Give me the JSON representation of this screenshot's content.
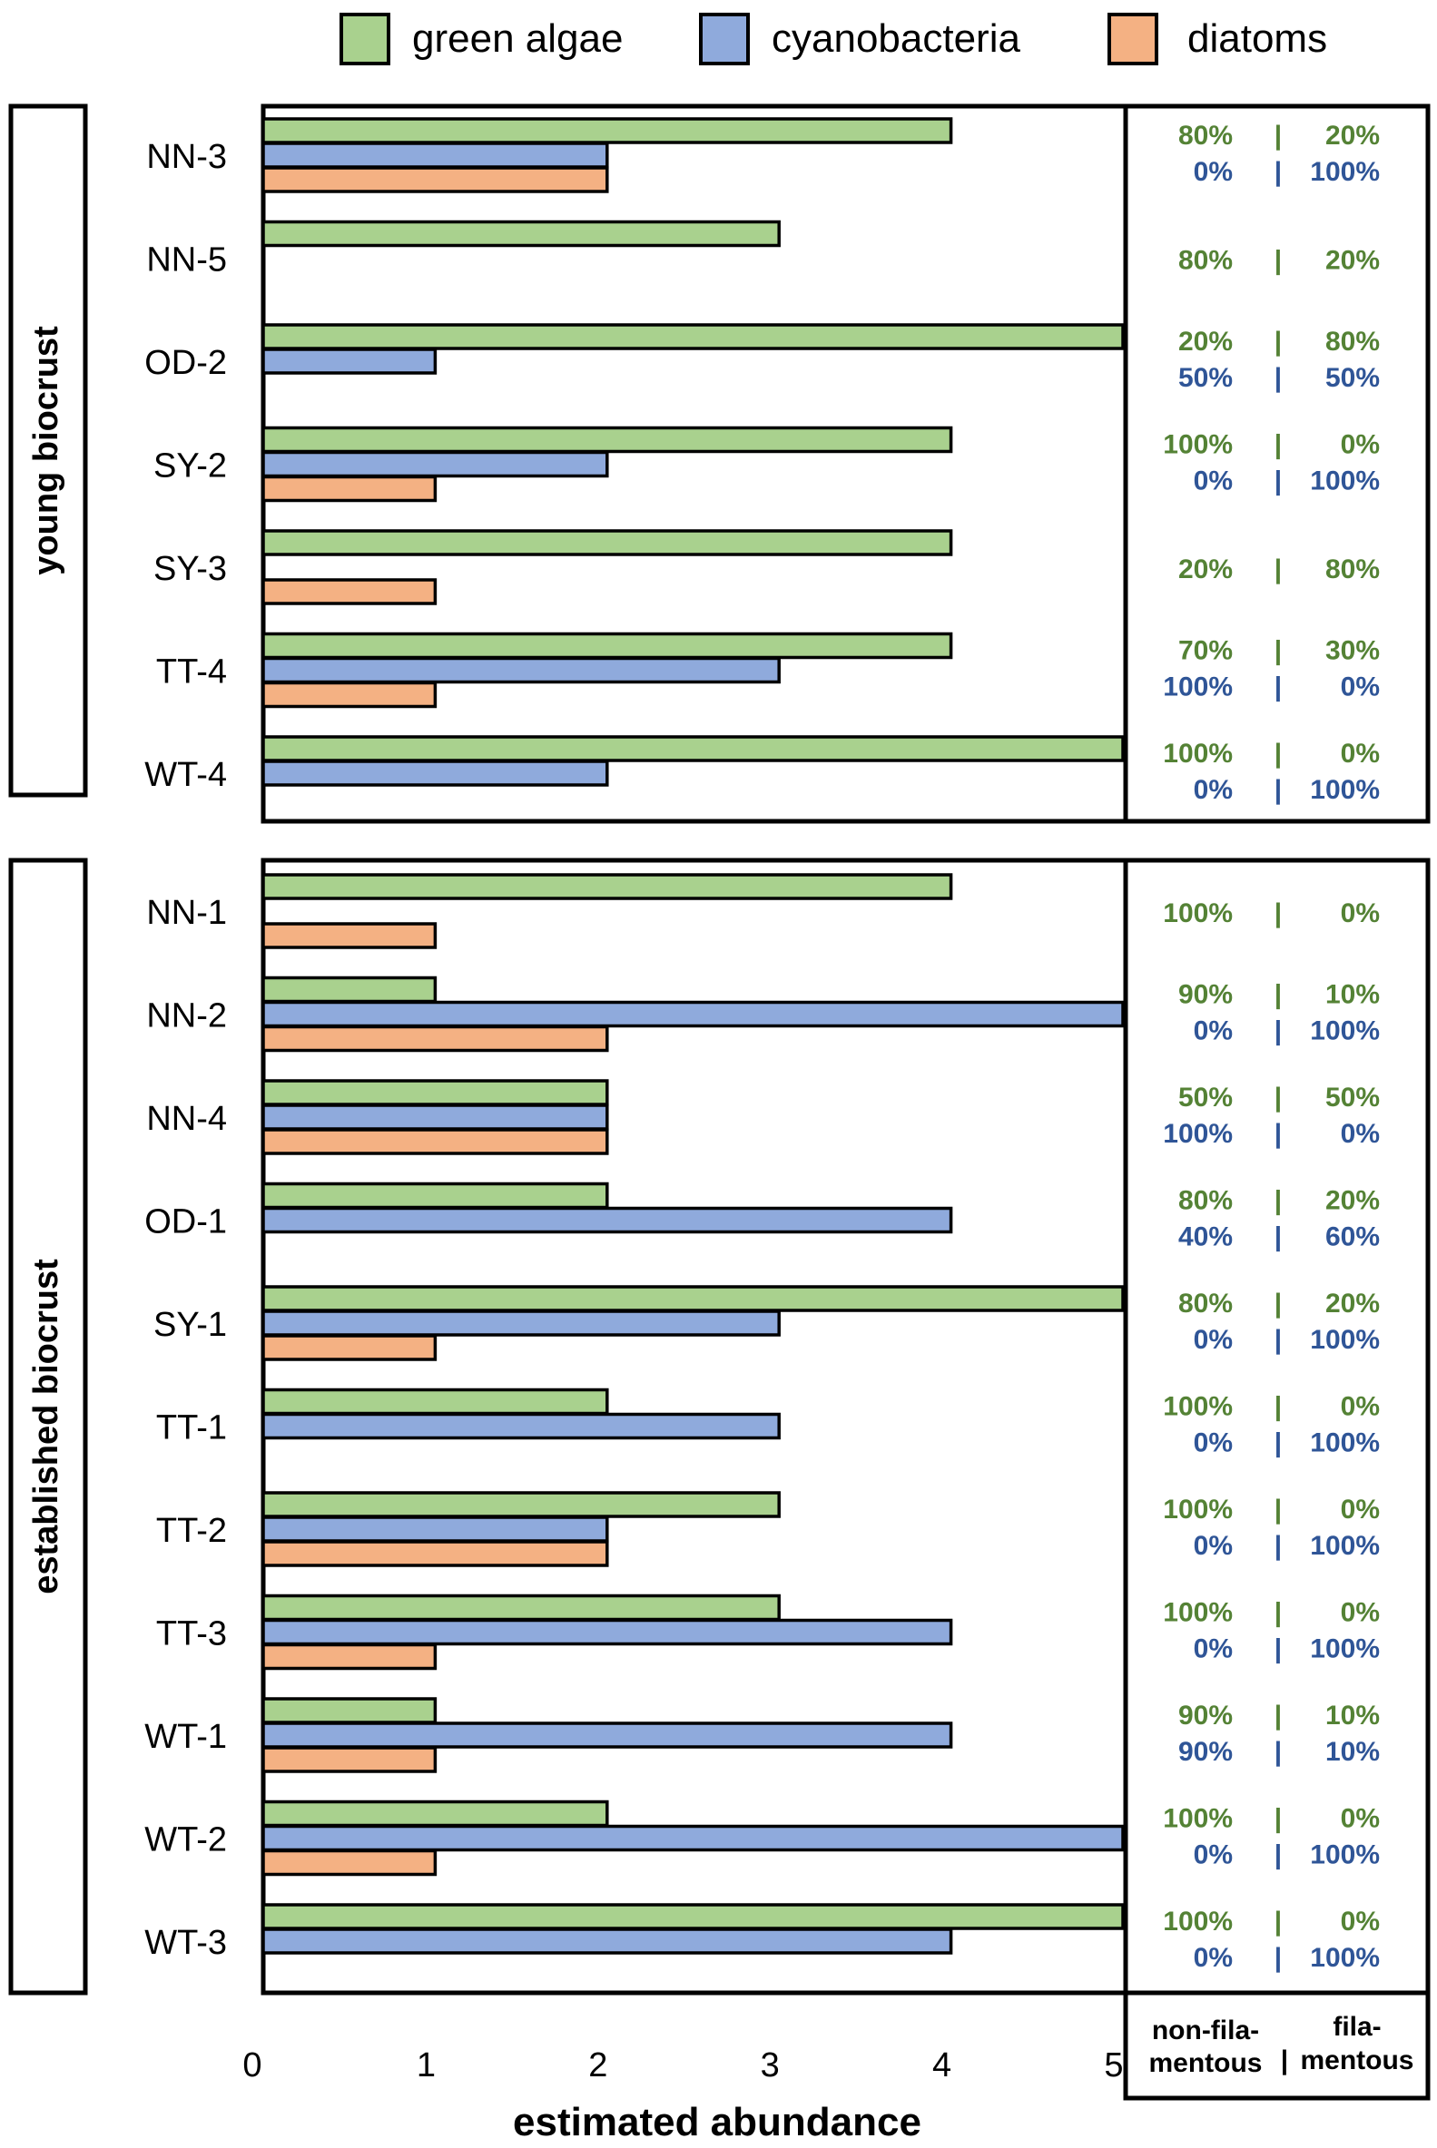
{
  "colors": {
    "green_algae": "#a9d18e",
    "cyanobacteria": "#8faadc",
    "diatoms": "#f4b183",
    "green_text": "#548235",
    "blue_text": "#2f5597"
  },
  "chart_data": {
    "type": "bar",
    "orientation": "horizontal",
    "xlabel": "estimated abundance",
    "xlim": [
      0,
      5
    ],
    "x_ticks": [
      "0",
      "1",
      "2",
      "3",
      "4",
      "5"
    ],
    "legend": [
      {
        "key": "green_algae",
        "label": "green algae"
      },
      {
        "key": "cyanobacteria",
        "label": "cyanobacteria"
      },
      {
        "key": "diatoms",
        "label": "diatoms"
      }
    ],
    "side_footer": {
      "left": [
        "non-fila-",
        "mentous"
      ],
      "divider": "|",
      "right": [
        "fila-",
        "mentous"
      ]
    },
    "groups": [
      {
        "label": "young biocrust",
        "samples": [
          {
            "name": "NN-3",
            "green_algae": 4,
            "cyanobacteria": 2,
            "diatoms": 2,
            "green_split": [
              "80%",
              "20%"
            ],
            "cyano_split": [
              "0%",
              "100%"
            ]
          },
          {
            "name": "NN-5",
            "green_algae": 3,
            "cyanobacteria": 0,
            "diatoms": 0,
            "green_split": [
              "80%",
              "20%"
            ],
            "cyano_split": null
          },
          {
            "name": "OD-2",
            "green_algae": 5,
            "cyanobacteria": 1,
            "diatoms": 0,
            "green_split": [
              "20%",
              "80%"
            ],
            "cyano_split": [
              "50%",
              "50%"
            ]
          },
          {
            "name": "SY-2",
            "green_algae": 4,
            "cyanobacteria": 2,
            "diatoms": 1,
            "green_split": [
              "100%",
              "0%"
            ],
            "cyano_split": [
              "0%",
              "100%"
            ]
          },
          {
            "name": "SY-3",
            "green_algae": 4,
            "cyanobacteria": 0,
            "diatoms": 1,
            "green_split": [
              "20%",
              "80%"
            ],
            "cyano_split": null
          },
          {
            "name": "TT-4",
            "green_algae": 4,
            "cyanobacteria": 3,
            "diatoms": 1,
            "green_split": [
              "70%",
              "30%"
            ],
            "cyano_split": [
              "100%",
              "0%"
            ]
          },
          {
            "name": "WT-4",
            "green_algae": 5,
            "cyanobacteria": 2,
            "diatoms": 0,
            "green_split": [
              "100%",
              "0%"
            ],
            "cyano_split": [
              "0%",
              "100%"
            ]
          }
        ]
      },
      {
        "label": "established biocrust",
        "samples": [
          {
            "name": "NN-1",
            "green_algae": 4,
            "cyanobacteria": 0,
            "diatoms": 1,
            "green_split": [
              "100%",
              "0%"
            ],
            "cyano_split": null
          },
          {
            "name": "NN-2",
            "green_algae": 1,
            "cyanobacteria": 5,
            "diatoms": 2,
            "green_split": [
              "90%",
              "10%"
            ],
            "cyano_split": [
              "0%",
              "100%"
            ]
          },
          {
            "name": "NN-4",
            "green_algae": 2,
            "cyanobacteria": 2,
            "diatoms": 2,
            "green_split": [
              "50%",
              "50%"
            ],
            "cyano_split": [
              "100%",
              "0%"
            ]
          },
          {
            "name": "OD-1",
            "green_algae": 2,
            "cyanobacteria": 4,
            "diatoms": 0,
            "green_split": [
              "80%",
              "20%"
            ],
            "cyano_split": [
              "40%",
              "60%"
            ]
          },
          {
            "name": "SY-1",
            "green_algae": 5,
            "cyanobacteria": 3,
            "diatoms": 1,
            "green_split": [
              "80%",
              "20%"
            ],
            "cyano_split": [
              "0%",
              "100%"
            ]
          },
          {
            "name": "TT-1",
            "green_algae": 2,
            "cyanobacteria": 3,
            "diatoms": 0,
            "green_split": [
              "100%",
              "0%"
            ],
            "cyano_split": [
              "0%",
              "100%"
            ]
          },
          {
            "name": "TT-2",
            "green_algae": 3,
            "cyanobacteria": 2,
            "diatoms": 2,
            "green_split": [
              "100%",
              "0%"
            ],
            "cyano_split": [
              "0%",
              "100%"
            ]
          },
          {
            "name": "TT-3",
            "green_algae": 3,
            "cyanobacteria": 4,
            "diatoms": 1,
            "green_split": [
              "100%",
              "0%"
            ],
            "cyano_split": [
              "0%",
              "100%"
            ]
          },
          {
            "name": "WT-1",
            "green_algae": 1,
            "cyanobacteria": 4,
            "diatoms": 1,
            "green_split": [
              "90%",
              "10%"
            ],
            "cyano_split": [
              "90%",
              "10%"
            ]
          },
          {
            "name": "WT-2",
            "green_algae": 2,
            "cyanobacteria": 5,
            "diatoms": 1,
            "green_split": [
              "100%",
              "0%"
            ],
            "cyano_split": [
              "0%",
              "100%"
            ]
          },
          {
            "name": "WT-3",
            "green_algae": 5,
            "cyanobacteria": 4,
            "diatoms": 0,
            "green_split": [
              "100%",
              "0%"
            ],
            "cyano_split": [
              "0%",
              "100%"
            ]
          }
        ]
      }
    ]
  }
}
